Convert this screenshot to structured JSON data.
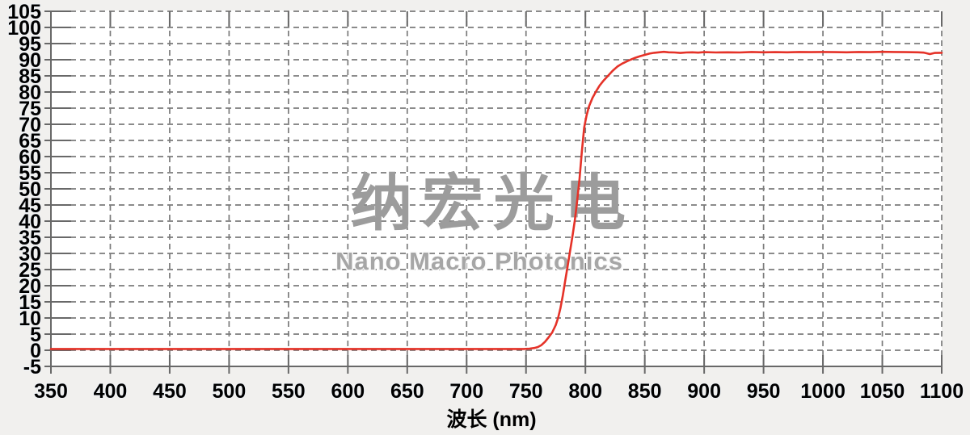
{
  "watermark": {
    "cn": "纳宏光电",
    "en": "Nano Macro Photonics"
  },
  "x_axis": {
    "title": "波长 (nm)",
    "min": 350,
    "max": 1100,
    "tick_step": 50,
    "tick_labels": [
      "350",
      "400",
      "450",
      "500",
      "550",
      "600",
      "650",
      "700",
      "750",
      "800",
      "850",
      "900",
      "950",
      "1000",
      "1050",
      "1100"
    ]
  },
  "y_axis": {
    "min": -5,
    "max": 105,
    "tick_step": 5,
    "tick_labels": [
      "105",
      "100",
      "95",
      "90",
      "85",
      "80",
      "75",
      "70",
      "65",
      "60",
      "55",
      "50",
      "45",
      "40",
      "35",
      "30",
      "25",
      "20",
      "15",
      "10",
      "5",
      "0",
      "-5"
    ]
  },
  "colors": {
    "background": "#f1f0ee",
    "plot_background": "#ffffff",
    "grid": "#7b7b7b",
    "axis": "#686868",
    "curve": "#e53228",
    "label": "#000000",
    "watermark_cn": "#9c9c9c",
    "watermark_en": "#a6a6a6"
  },
  "chart_data": {
    "type": "line",
    "title": "",
    "xlabel": "波长 (nm)",
    "ylabel": "",
    "xlim": [
      350,
      1100
    ],
    "ylim": [
      -5,
      105
    ],
    "grid": "dashed",
    "legend": "none",
    "series": [
      {
        "name": "transmission-percent",
        "color": "#e53228",
        "points": [
          [
            350,
            0.4
          ],
          [
            375,
            0.4
          ],
          [
            400,
            0.4
          ],
          [
            425,
            0.4
          ],
          [
            450,
            0.4
          ],
          [
            475,
            0.4
          ],
          [
            500,
            0.4
          ],
          [
            525,
            0.4
          ],
          [
            550,
            0.4
          ],
          [
            575,
            0.4
          ],
          [
            600,
            0.4
          ],
          [
            625,
            0.4
          ],
          [
            650,
            0.4
          ],
          [
            675,
            0.4
          ],
          [
            700,
            0.4
          ],
          [
            715,
            0.4
          ],
          [
            730,
            0.4
          ],
          [
            740,
            0.4
          ],
          [
            748,
            0.4
          ],
          [
            753,
            0.5
          ],
          [
            757,
            0.7
          ],
          [
            760,
            1.0
          ],
          [
            763,
            1.6
          ],
          [
            766,
            2.6
          ],
          [
            769,
            4.0
          ],
          [
            772,
            5.5
          ],
          [
            775,
            7.8
          ],
          [
            777,
            10
          ],
          [
            779,
            13
          ],
          [
            781,
            17
          ],
          [
            783,
            21.5
          ],
          [
            785,
            26
          ],
          [
            787,
            30.5
          ],
          [
            789,
            35
          ],
          [
            791,
            40
          ],
          [
            793,
            46
          ],
          [
            795,
            53
          ],
          [
            797,
            61.5
          ],
          [
            799,
            69
          ],
          [
            801,
            72.8
          ],
          [
            803,
            75.5
          ],
          [
            806,
            78.2
          ],
          [
            809,
            80.2
          ],
          [
            812,
            82
          ],
          [
            815,
            83.4
          ],
          [
            819,
            85
          ],
          [
            823,
            86.6
          ],
          [
            827,
            87.9
          ],
          [
            831,
            88.8
          ],
          [
            835,
            89.5
          ],
          [
            838,
            90
          ],
          [
            842,
            90.6
          ],
          [
            846,
            91.1
          ],
          [
            850,
            91.5
          ],
          [
            854,
            91.9
          ],
          [
            858,
            92.15
          ],
          [
            862,
            92.3
          ],
          [
            866,
            92.45
          ],
          [
            870,
            92.3
          ],
          [
            875,
            92.25
          ],
          [
            880,
            92.1
          ],
          [
            885,
            92.25
          ],
          [
            890,
            92.3
          ],
          [
            895,
            92.2
          ],
          [
            900,
            92.35
          ],
          [
            910,
            92.25
          ],
          [
            920,
            92.3
          ],
          [
            930,
            92.25
          ],
          [
            940,
            92.4
          ],
          [
            950,
            92.3
          ],
          [
            960,
            92.35
          ],
          [
            970,
            92.3
          ],
          [
            980,
            92.4
          ],
          [
            990,
            92.35
          ],
          [
            1000,
            92.4
          ],
          [
            1010,
            92.35
          ],
          [
            1020,
            92.3
          ],
          [
            1030,
            92.4
          ],
          [
            1040,
            92.35
          ],
          [
            1050,
            92.45
          ],
          [
            1060,
            92.4
          ],
          [
            1070,
            92.35
          ],
          [
            1080,
            92.3
          ],
          [
            1085,
            92.2
          ],
          [
            1090,
            91.75
          ],
          [
            1094,
            92.1
          ],
          [
            1100,
            92.15
          ]
        ]
      }
    ]
  }
}
